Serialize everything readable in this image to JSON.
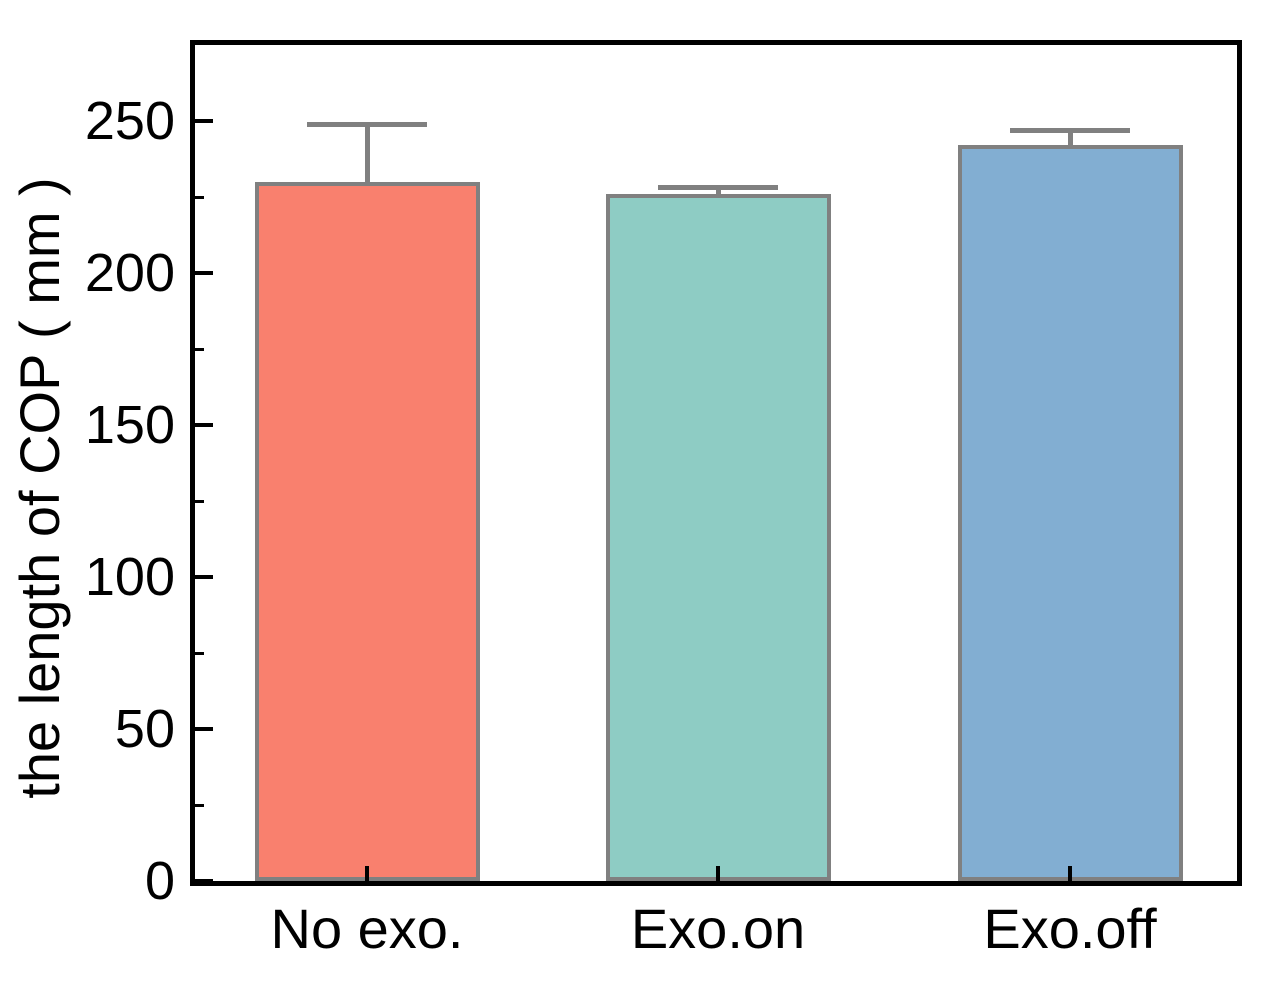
{
  "chart_data": {
    "type": "bar",
    "title": "",
    "xlabel": "",
    "ylabel": "the length of COP ( mm )",
    "categories": [
      "No exo.",
      "Exo.on",
      "Exo.off"
    ],
    "values": [
      230,
      226,
      242
    ],
    "errors_plus": [
      19,
      2,
      5
    ],
    "bar_colors": [
      "#F9806E",
      "#8ECCC4",
      "#82AED2"
    ],
    "bar_edge_color": "#808080",
    "error_bar_color": "#808080",
    "axis_color": "#000000",
    "text_color": "#000000",
    "background_color": "#ffffff",
    "yticks": [
      0,
      50,
      100,
      150,
      200,
      250
    ],
    "yticks_minor": [
      25,
      75,
      125,
      175,
      225
    ],
    "ylim": [
      0,
      275
    ],
    "grid": false,
    "legend": null,
    "frame": "full-box",
    "tick_direction": "in"
  }
}
